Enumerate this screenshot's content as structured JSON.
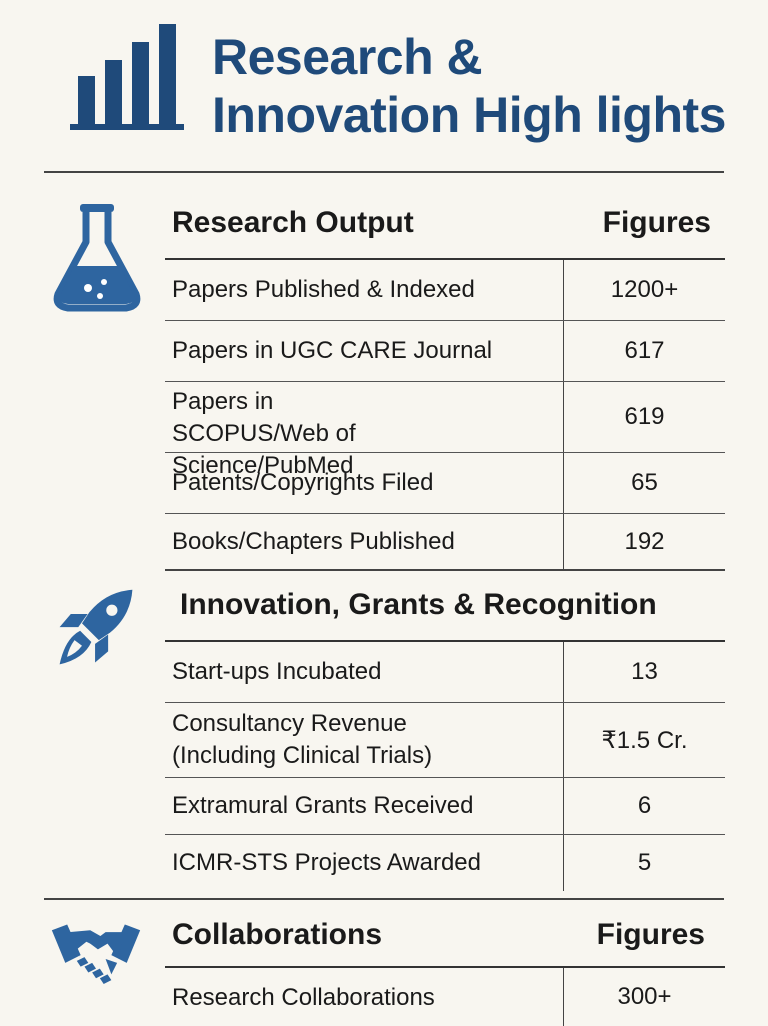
{
  "header": {
    "title_line1": "Research &",
    "title_line2": "Innovation High lights",
    "logo_icon": "bar-chart-icon"
  },
  "colors": {
    "accent": "#2e65a0",
    "title": "#1f4a7a",
    "background": "#f8f6f0"
  },
  "sections": [
    {
      "icon": "flask-icon",
      "heading": "Research Output",
      "figures_heading": "Figures",
      "rows": [
        {
          "label": "Papers Published & Indexed",
          "value": "1200+"
        },
        {
          "label": "Papers in UGC CARE Journal",
          "value": "617"
        },
        {
          "label": "Papers in SCOPUS/Web of Science/PubMed",
          "value": "619"
        },
        {
          "label": "Patents/Copyrights Filed",
          "value": "65"
        },
        {
          "label": "Books/Chapters Published",
          "value": "192"
        }
      ]
    },
    {
      "icon": "rocket-icon",
      "heading": "Innovation, Grants & Recognition",
      "rows": [
        {
          "label": "Start-ups Incubated",
          "value": "13"
        },
        {
          "label": "Consultancy Revenue (Including Clinical Trials)",
          "value": "₹1.5 Cr."
        },
        {
          "label": "Extramural Grants Received",
          "value": "6"
        },
        {
          "label": "ICMR-STS Projects Awarded",
          "value": "5"
        }
      ]
    },
    {
      "icon": "handshake-icon",
      "heading": "Collaborations",
      "figures_heading": "Figures",
      "rows": [
        {
          "label": "Research Collaborations",
          "value": "300+"
        }
      ]
    }
  ]
}
